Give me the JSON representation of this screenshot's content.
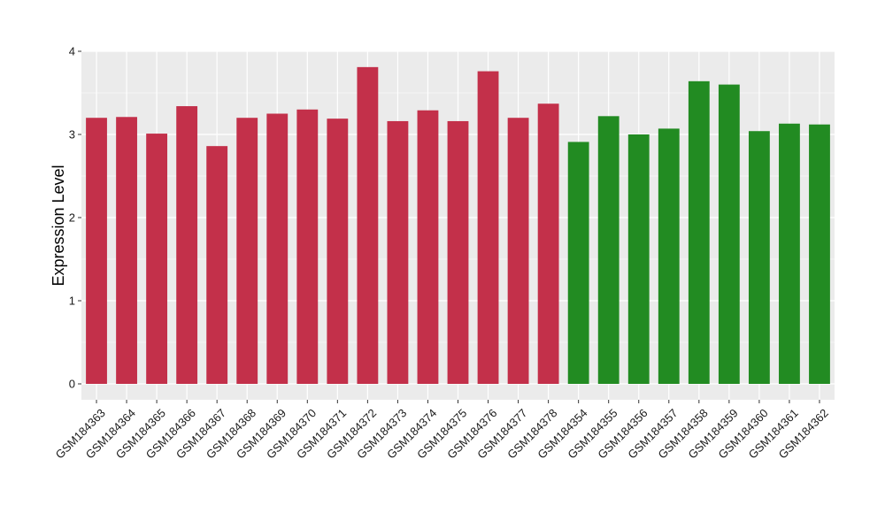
{
  "chart_data": {
    "type": "bar",
    "title": "",
    "xlabel": "",
    "ylabel": "Expression Level",
    "ylim": [
      0,
      4
    ],
    "yticks": [
      0,
      1,
      2,
      3,
      4
    ],
    "grid": true,
    "legend": "none",
    "categories": [
      "GSM184363",
      "GSM184364",
      "GSM184365",
      "GSM184366",
      "GSM184367",
      "GSM184368",
      "GSM184369",
      "GSM184370",
      "GSM184371",
      "GSM184372",
      "GSM184373",
      "GSM184374",
      "GSM184375",
      "GSM184376",
      "GSM184377",
      "GSM184378",
      "GSM184354",
      "GSM184355",
      "GSM184356",
      "GSM184357",
      "GSM184358",
      "GSM184359",
      "GSM184360",
      "GSM184361",
      "GSM184362"
    ],
    "values": [
      3.2,
      3.21,
      3.01,
      3.34,
      2.86,
      3.2,
      3.25,
      3.3,
      3.19,
      3.81,
      3.16,
      3.29,
      3.16,
      3.76,
      3.2,
      3.37,
      2.91,
      3.22,
      3.0,
      3.07,
      3.64,
      3.6,
      3.04,
      3.13,
      3.12
    ],
    "bar_colors": [
      "#C3304A",
      "#C3304A",
      "#C3304A",
      "#C3304A",
      "#C3304A",
      "#C3304A",
      "#C3304A",
      "#C3304A",
      "#C3304A",
      "#C3304A",
      "#C3304A",
      "#C3304A",
      "#C3304A",
      "#C3304A",
      "#C3304A",
      "#C3304A",
      "#228B22",
      "#228B22",
      "#228B22",
      "#228B22",
      "#228B22",
      "#228B22",
      "#228B22",
      "#228B22",
      "#228B22"
    ],
    "panel_background": "#EBEBEB",
    "grid_color": "#FFFFFF"
  }
}
